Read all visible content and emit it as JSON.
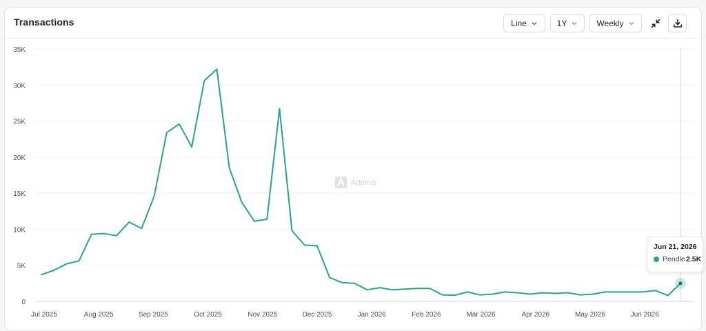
{
  "card": {
    "title": "Transactions"
  },
  "controls": {
    "chart_type": "Line",
    "range": "1Y",
    "interval": "Weekly",
    "collapse_icon": "collapse-icon",
    "download_icon": "download-icon"
  },
  "watermark": {
    "text": "Artemis"
  },
  "tooltip": {
    "date": "Jun 21, 2026",
    "series": "Pendle",
    "value": "2.5K",
    "color": "#25a58a"
  },
  "chart_data": {
    "type": "line",
    "title": "Transactions",
    "color": "#25a58a",
    "ylim": [
      0,
      35000
    ],
    "yticks": [
      0,
      5000,
      10000,
      15000,
      20000,
      25000,
      30000,
      35000
    ],
    "ytick_labels": [
      "0",
      "5K",
      "10K",
      "15K",
      "20K",
      "25K",
      "30K",
      "35K"
    ],
    "xtick_labels": [
      "Jul 2025",
      "Aug 2025",
      "Sep 2025",
      "Oct 2025",
      "Nov 2025",
      "Dec 2025",
      "Jan 2026",
      "Feb 2026",
      "Mar 2026",
      "Apr 2026",
      "May 2026",
      "Jun 2026"
    ],
    "series": [
      {
        "name": "Pendle",
        "values": [
          3700,
          4300,
          5200,
          5600,
          9300,
          9400,
          9100,
          11000,
          10100,
          14600,
          23400,
          24600,
          21400,
          30600,
          32200,
          18500,
          13700,
          11100,
          11400,
          26700,
          9800,
          7800,
          7700,
          3300,
          2600,
          2500,
          1600,
          1900,
          1600,
          1700,
          1800,
          1800,
          900,
          850,
          1300,
          900,
          1000,
          1300,
          1200,
          1000,
          1200,
          1100,
          1200,
          900,
          1000,
          1300,
          1300,
          1300,
          1300,
          1500,
          800,
          2500
        ]
      }
    ]
  }
}
